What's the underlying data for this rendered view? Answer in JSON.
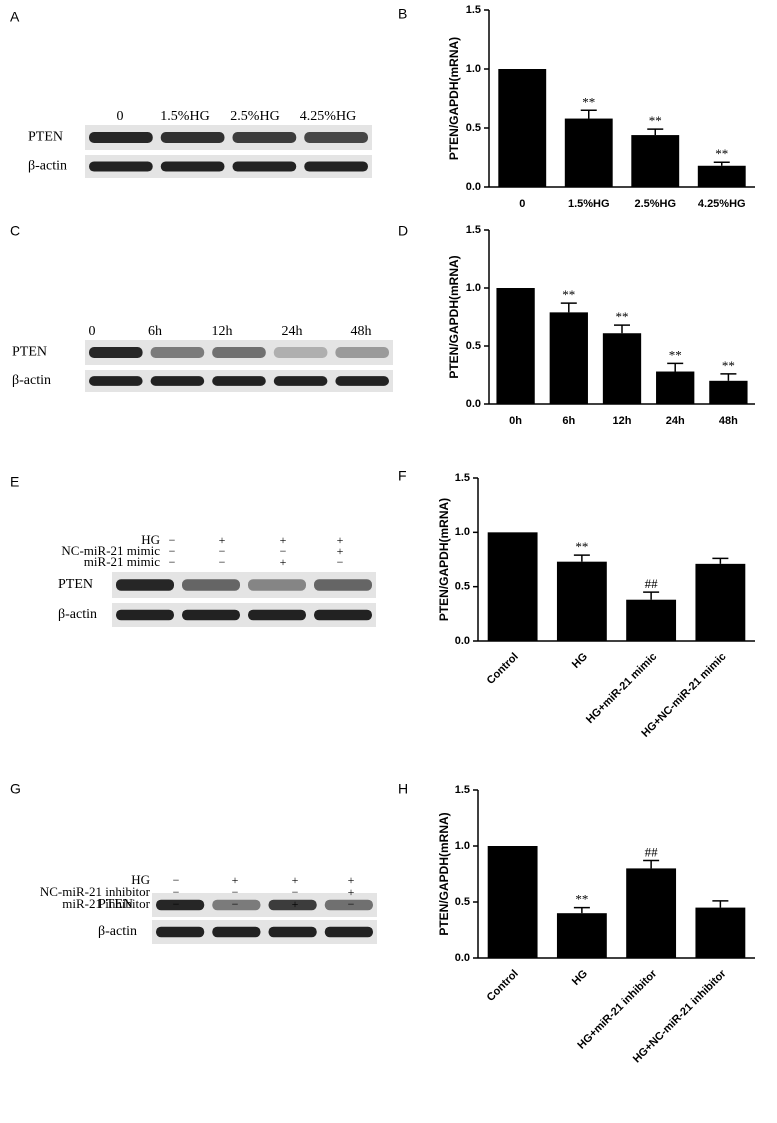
{
  "panels": [
    "A",
    "B",
    "C",
    "D",
    "E",
    "F",
    "G",
    "H"
  ],
  "blots": [
    {
      "lanes": [
        "0",
        "1.5%HG",
        "2.5%HG",
        "4.25%HG"
      ],
      "rows": [
        "PTEN",
        "β-actin"
      ]
    },
    {
      "lanes": [
        "0",
        "6h",
        "12h",
        "24h",
        "48h"
      ],
      "rows": [
        "PTEN",
        "β-actin"
      ]
    },
    {
      "conditions": [
        {
          "name": "HG",
          "signs": [
            "−",
            "+",
            "+",
            "+"
          ]
        },
        {
          "name": "NC-miR-21 mimic",
          "signs": [
            "−",
            "−",
            "−",
            "+"
          ]
        },
        {
          "name": "miR-21 mimic",
          "signs": [
            "−",
            "−",
            "+",
            "−"
          ]
        }
      ],
      "rows": [
        "PTEN",
        "β-actin"
      ]
    },
    {
      "conditions": [
        {
          "name": "HG",
          "signs": [
            "−",
            "+",
            "+",
            "+"
          ]
        },
        {
          "name": "NC-miR-21 inhibitor",
          "signs": [
            "−",
            "−",
            "−",
            "+"
          ]
        },
        {
          "name": "miR-21 inhibitor",
          "signs": [
            "−",
            "−",
            "+",
            "−"
          ]
        }
      ],
      "rows": [
        "PTEN",
        "β-actin"
      ]
    }
  ],
  "chart_data": [
    {
      "type": "bar",
      "y_label": "PTEN/GAPDH(mRNA)",
      "categories": [
        "0",
        "1.5%HG",
        "2.5%HG",
        "4.25%HG"
      ],
      "values": [
        1.0,
        0.58,
        0.44,
        0.18
      ],
      "errors": [
        null,
        0.07,
        0.05,
        0.03
      ],
      "markers": [
        null,
        "**",
        "**",
        "**"
      ],
      "color": "#000000",
      "ylim": [
        0,
        1.5
      ],
      "yticks": [
        {
          "value": 0,
          "label": "0.0"
        },
        {
          "value": 0.5,
          "label": "0.5"
        },
        {
          "value": 1,
          "label": "1.0"
        },
        {
          "value": 1.5,
          "label": "1.5"
        }
      ]
    },
    {
      "type": "bar",
      "y_label": "PTEN/GAPDH(mRNA)",
      "categories": [
        "0h",
        "6h",
        "12h",
        "24h",
        "48h"
      ],
      "values": [
        1.0,
        0.79,
        0.61,
        0.28,
        0.2
      ],
      "errors": [
        null,
        0.08,
        0.07,
        0.07,
        0.06
      ],
      "markers": [
        null,
        "**",
        "**",
        "**",
        "**"
      ],
      "color": "#000000",
      "ylim": [
        0,
        1.5
      ],
      "yticks": [
        {
          "value": 0,
          "label": "0.0"
        },
        {
          "value": 0.5,
          "label": "0.5"
        },
        {
          "value": 1,
          "label": "1.0"
        },
        {
          "value": 1.5,
          "label": "1.5"
        }
      ]
    },
    {
      "type": "bar",
      "y_label": "PTEN/GAPDH(mRNA)",
      "categories": [
        "Control",
        "HG",
        "HG+miR-21 mimic",
        "HG+NC-miR-21 mimic"
      ],
      "values": [
        1.0,
        0.73,
        0.38,
        0.71
      ],
      "errors": [
        null,
        0.06,
        0.07,
        0.05
      ],
      "markers": [
        null,
        "**",
        "##",
        null
      ],
      "color": "#000000",
      "ylim": [
        0,
        1.5
      ],
      "yticks": [
        {
          "value": 0,
          "label": "0.0"
        },
        {
          "value": 0.5,
          "label": "0.5"
        },
        {
          "value": 1,
          "label": "1.0"
        },
        {
          "value": 1.5,
          "label": "1.5"
        }
      ]
    },
    {
      "type": "bar",
      "y_label": "PTEN/GAPDH(mRNA)",
      "categories": [
        "Control",
        "HG",
        "HG+miR-21 inhibitor",
        "HG+NC-miR-21 inhibitor"
      ],
      "values": [
        1.0,
        0.4,
        0.8,
        0.45
      ],
      "errors": [
        null,
        0.05,
        0.07,
        0.06
      ],
      "markers": [
        null,
        "**",
        "##",
        null
      ],
      "color": "#000000",
      "ylim": [
        0,
        1.5
      ],
      "yticks": [
        {
          "value": 0,
          "label": "0.0"
        },
        {
          "value": 0.5,
          "label": "0.5"
        },
        {
          "value": 1,
          "label": "1.0"
        },
        {
          "value": 1.5,
          "label": "1.5"
        }
      ]
    }
  ]
}
